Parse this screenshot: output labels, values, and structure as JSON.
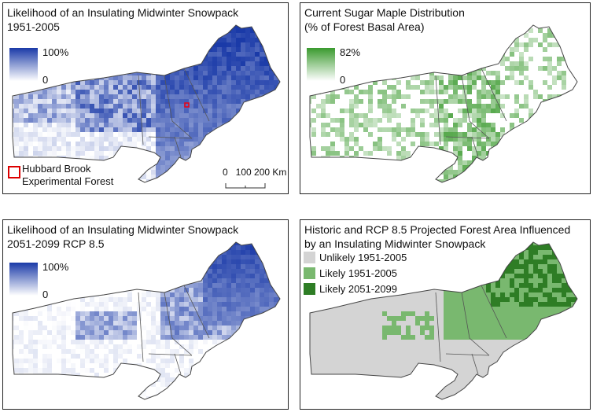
{
  "panels": [
    {
      "title_line1": "Likelihood of an Insulating Midwinter Snowpack",
      "title_line2": "1951-2005",
      "legend_max": "100%",
      "legend_min": "0",
      "marker_label_line1": "Hubbard Brook",
      "marker_label_line2": "Experimental Forest",
      "scale_label": "0   100 200 Km",
      "ramp_top": "#1a3aa8",
      "ramp_bottom": "#ffffff"
    },
    {
      "title_line1": "Current Sugar Maple Distribution",
      "title_line2": "(% of Forest Basal Area)",
      "legend_max": "82%",
      "legend_min": "0",
      "ramp_top": "#3a9a2e",
      "ramp_bottom": "#ffffff"
    },
    {
      "title_line1": "Likelihood of an Insulating Midwinter Snowpack",
      "title_line2": "2051-2099 RCP 8.5",
      "legend_max": "100%",
      "legend_min": "0",
      "ramp_top": "#1a3aa8",
      "ramp_bottom": "#ffffff"
    },
    {
      "title_line1": "Historic and RCP 8.5 Projected Forest Area Influenced",
      "title_line2": "by an Insulating Midwinter Snowpack",
      "legend": [
        {
          "label": "Unlikely 1951-2005",
          "color": "#d4d4d4"
        },
        {
          "label": "Likely 1951-2005",
          "color": "#79b86f"
        },
        {
          "label": "Likely 2051-2099",
          "color": "#2e7d25"
        }
      ]
    }
  ]
}
